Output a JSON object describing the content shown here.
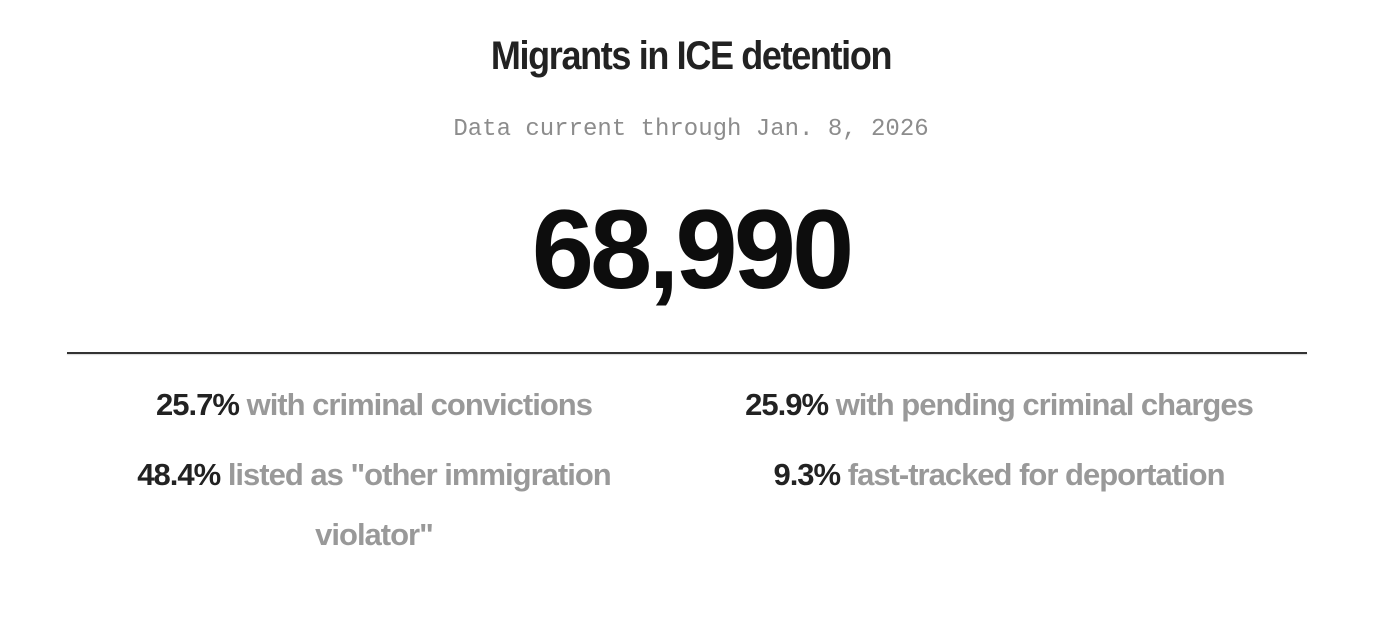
{
  "title": "Migrants in ICE detention",
  "subtitle": "Data current through Jan. 8, 2026",
  "total": "68,990",
  "stats": [
    {
      "percent": "25.7%",
      "label": "with criminal convictions"
    },
    {
      "percent": "25.9%",
      "label": "with pending criminal charges"
    },
    {
      "percent": "48.4%",
      "label": "listed as \"other immigration violator\""
    },
    {
      "percent": "9.3%",
      "label": "fast-tracked for deportation"
    }
  ]
}
